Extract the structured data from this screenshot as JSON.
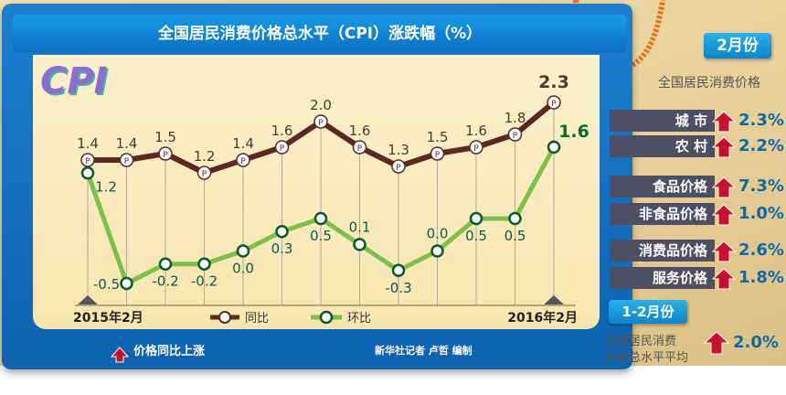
{
  "title": "全国居民消费价格总水平（CPI）涨跌幅（%）",
  "logo_text": "CPI",
  "chart_data": {
    "type": "line",
    "title": "全国居民消费价格总水平（CPI）涨跌幅（%）",
    "categories": [
      "2015-02",
      "2015-03",
      "2015-04",
      "2015-05",
      "2015-06",
      "2015-07",
      "2015-08",
      "2015-09",
      "2015-10",
      "2015-11",
      "2015-12",
      "2016-01",
      "2016-02"
    ],
    "x_start_label": "2015年2月",
    "x_end_label": "2016年2月",
    "series": [
      {
        "name": "同比",
        "color": "#5a2a22",
        "values": [
          1.4,
          1.4,
          1.5,
          1.2,
          1.4,
          1.6,
          2.0,
          1.6,
          1.3,
          1.5,
          1.6,
          1.8,
          2.3
        ]
      },
      {
        "name": "环比",
        "color": "#7cbf4a",
        "values": [
          1.2,
          -0.5,
          -0.2,
          -0.2,
          0.0,
          0.3,
          0.5,
          0.1,
          -0.3,
          0.0,
          0.5,
          0.5,
          1.6
        ]
      }
    ],
    "legend": "bottom",
    "grid": "vertical"
  },
  "footer": {
    "legend_note": "价格同比上涨",
    "credit": "新华社记者 卢哲 编制"
  },
  "panel": {
    "month_badge": "2月份",
    "month_subtitle": "全国居民消费价格",
    "items": [
      {
        "label": "城 市",
        "value": "2.3%"
      },
      {
        "label": "农 村",
        "value": "2.2%"
      },
      {
        "label": "食品价格",
        "value": "7.3%"
      },
      {
        "label": "非食品价格",
        "value": "1.0%"
      },
      {
        "label": "消费品价格",
        "value": "2.6%"
      },
      {
        "label": "服务价格",
        "value": "1.8%"
      }
    ],
    "range_badge": "1-2月份",
    "range_line1": "全国居民消费",
    "range_line2": "价格总水平平均",
    "range_value": "2.0%"
  },
  "colors": {
    "frame": "#0e62b0",
    "up_arrow": "#c8102e",
    "value": "#0c6aa8"
  }
}
